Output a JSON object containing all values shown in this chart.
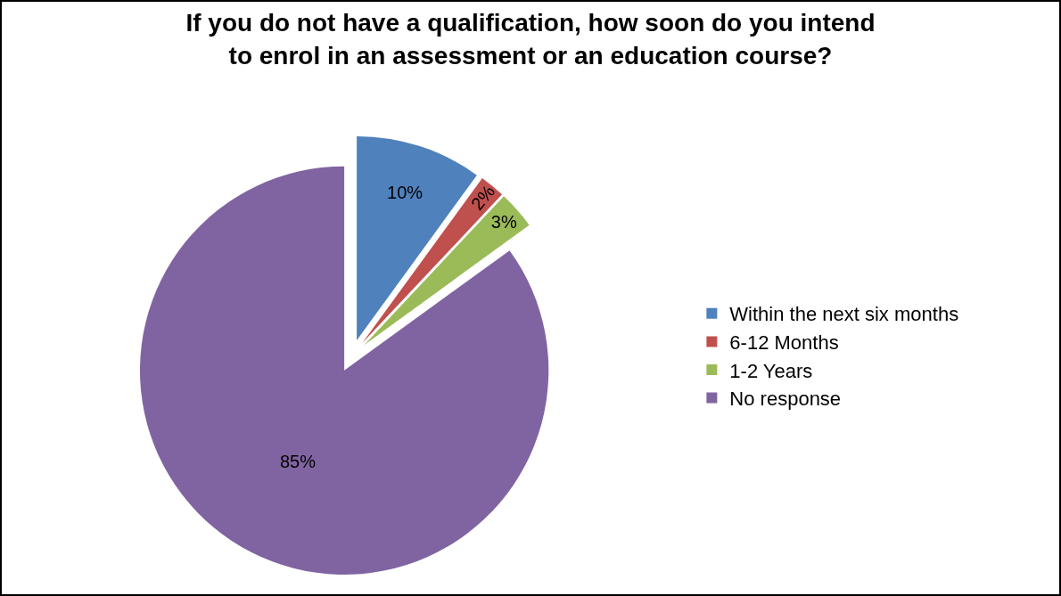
{
  "chart_data": {
    "type": "pie",
    "title": "If you do not have a qualification, how soon do you intend\nto enrol in an assessment or an education course?",
    "categories": [
      "Within the next six months",
      "6-12 Months",
      "1-2 Years",
      "No response"
    ],
    "values": [
      10,
      2,
      3,
      85
    ],
    "value_labels": [
      "10%",
      "2%",
      "3%",
      "85%"
    ],
    "colors": [
      "#4f81bd",
      "#c0504d",
      "#9bbb59",
      "#8064a2"
    ],
    "legend": "right"
  }
}
